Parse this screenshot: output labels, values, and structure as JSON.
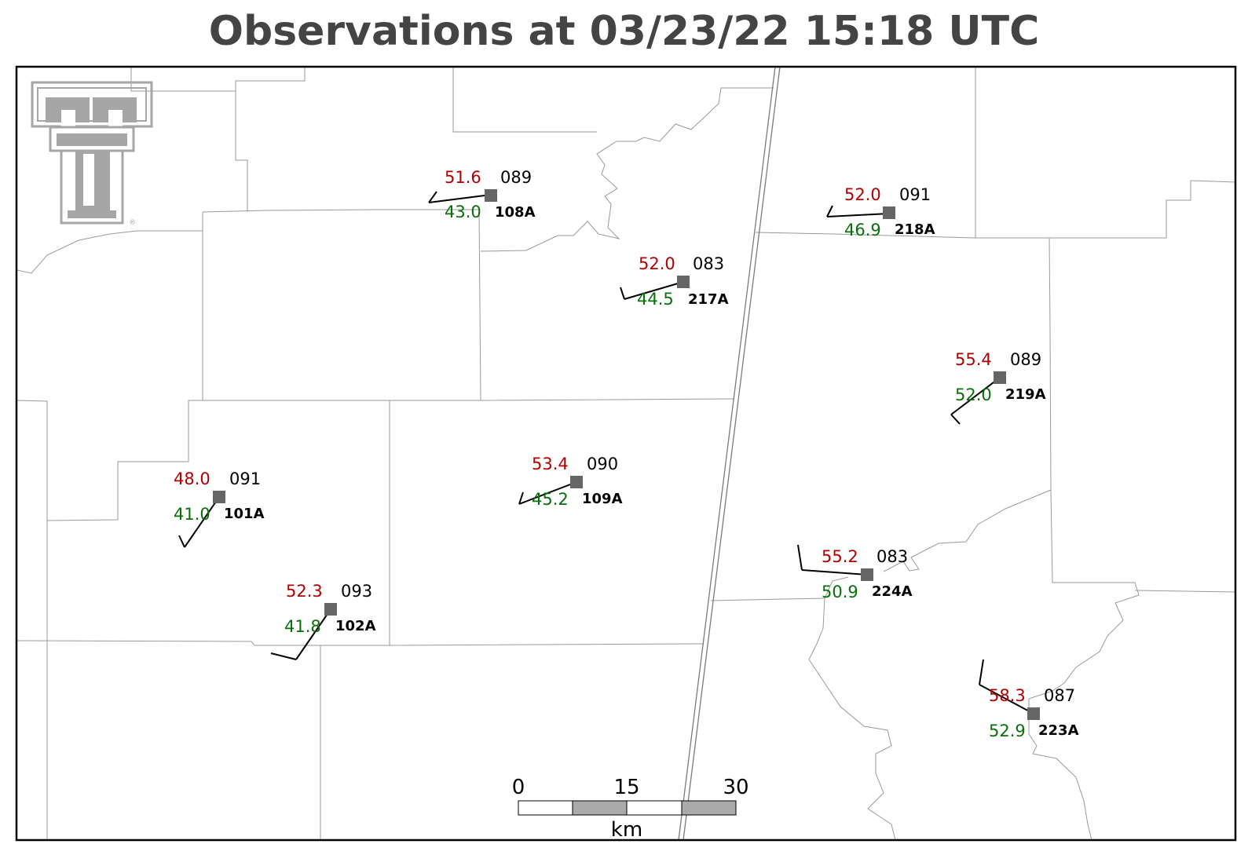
{
  "title": "Observations at 03/23/22 15:18 UTC",
  "colors": {
    "temperature": "#b00000",
    "dewpoint": "#0a6e0a",
    "marker": "#666666",
    "frame": "#000000",
    "title": "#444444",
    "logo": "#a6a6a6"
  },
  "stations": [
    {
      "id": "108A",
      "temp": "51.6",
      "dew": "43.0",
      "dir": "089"
    },
    {
      "id": "217A",
      "temp": "52.0",
      "dew": "44.5",
      "dir": "083"
    },
    {
      "id": "218A",
      "temp": "52.0",
      "dew": "46.9",
      "dir": "091"
    },
    {
      "id": "219A",
      "temp": "55.4",
      "dew": "52.0",
      "dir": "089"
    },
    {
      "id": "109A",
      "temp": "53.4",
      "dew": "45.2",
      "dir": "090"
    },
    {
      "id": "101A",
      "temp": "48.0",
      "dew": "41.0",
      "dir": "091"
    },
    {
      "id": "102A",
      "temp": "52.3",
      "dew": "41.8",
      "dir": "093"
    },
    {
      "id": "224A",
      "temp": "55.2",
      "dew": "50.9",
      "dir": "083"
    },
    {
      "id": "223A",
      "temp": "58.3",
      "dew": "52.9",
      "dir": "087"
    }
  ],
  "scale_bar": {
    "labels": [
      "0",
      "15",
      "30"
    ],
    "unit": "km"
  },
  "logo": {
    "icon": "texas-tech-double-t-logo"
  }
}
